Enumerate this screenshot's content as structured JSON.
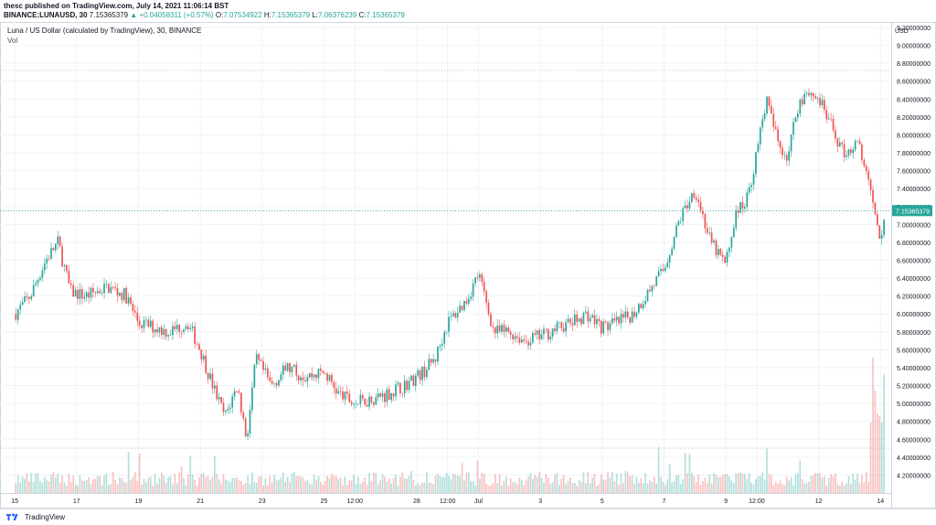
{
  "header": {
    "published_line": "thesc published on TradingView.com, July 14, 2021 11:06:14 BST",
    "symbol": "BINANCE:LUNAUSD, 30",
    "last_price": "7.15365379",
    "change": "▲ +0.04058311 (+0.57%)",
    "o_label": "O:",
    "o_value": "7.07534922",
    "h_label": "H:",
    "h_value": "7.15365379",
    "l_label": "L:",
    "l_value": "7.06376239",
    "c_label": "C:",
    "c_value": "7.15365379"
  },
  "legend": {
    "title": "Luna / US Dollar (calculated by TradingView), 30, BINANCE",
    "vol": "Vol"
  },
  "footer": {
    "brand": "TradingView"
  },
  "colors": {
    "up": "#26a69a",
    "down": "#ef5350",
    "price_tag": "#26a69a"
  },
  "chart_data": {
    "type": "candlestick",
    "title": "Luna / US Dollar (calculated by TradingView), 30, BINANCE",
    "ylabel": "USD",
    "ylim": [
      4.0,
      9.2
    ],
    "y_ticks": [
      9.2,
      9.0,
      8.8,
      8.6,
      8.4,
      8.2,
      8.0,
      7.8,
      7.6,
      7.4,
      7.2,
      7.0,
      6.8,
      6.6,
      6.4,
      6.2,
      6.0,
      5.8,
      5.6,
      5.4,
      5.2,
      5.0,
      4.8,
      4.6,
      4.4,
      4.2
    ],
    "y_tick_labels": [
      "9.20000000",
      "9.00000000",
      "8.80000000",
      "8.60000000",
      "8.40000000",
      "8.20000000",
      "8.00000000",
      "7.80000000",
      "7.60000000",
      "7.40000000",
      "7.20000000",
      "7.00000000",
      "6.80000000",
      "6.60000000",
      "6.40000000",
      "6.20000000",
      "6.00000000",
      "5.80000000",
      "5.60000000",
      "5.40000000",
      "5.20000000",
      "5.00000000",
      "4.80000000",
      "4.60000000",
      "4.40000000",
      "4.20000000"
    ],
    "x_ticks": [
      {
        "label": "15",
        "day": 0
      },
      {
        "label": "17",
        "day": 2
      },
      {
        "label": "19",
        "day": 4
      },
      {
        "label": "21",
        "day": 6
      },
      {
        "label": "23",
        "day": 8
      },
      {
        "label": "25",
        "day": 10
      },
      {
        "label": "12:00",
        "day": 11
      },
      {
        "label": "28",
        "day": 13
      },
      {
        "label": "12:00",
        "day": 14
      },
      {
        "label": "Jul",
        "day": 15
      },
      {
        "label": "3",
        "day": 17
      },
      {
        "label": "5",
        "day": 19
      },
      {
        "label": "7",
        "day": 21
      },
      {
        "label": "9",
        "day": 23
      },
      {
        "label": "12:00",
        "day": 24
      },
      {
        "label": "12",
        "day": 26
      },
      {
        "label": "14",
        "day": 28
      }
    ],
    "xlim_days": [
      -0.3,
      28.2
    ],
    "last_price": 7.15365379,
    "last_price_label": "7.15365379",
    "reference_lines": [
      8.72,
      4.5
    ],
    "path_anchors": [
      [
        0,
        6.0
      ],
      [
        0.5,
        6.2
      ],
      [
        1.0,
        6.6
      ],
      [
        1.4,
        6.8
      ],
      [
        1.8,
        6.25
      ],
      [
        2.3,
        6.2
      ],
      [
        3.0,
        6.3
      ],
      [
        3.6,
        6.2
      ],
      [
        4.0,
        5.9
      ],
      [
        4.5,
        5.85
      ],
      [
        5.0,
        5.8
      ],
      [
        5.6,
        5.9
      ],
      [
        6.0,
        5.6
      ],
      [
        6.4,
        5.2
      ],
      [
        6.8,
        4.85
      ],
      [
        7.2,
        5.2
      ],
      [
        7.5,
        4.6
      ],
      [
        7.8,
        5.5
      ],
      [
        8.3,
        5.2
      ],
      [
        8.8,
        5.4
      ],
      [
        9.4,
        5.3
      ],
      [
        10.0,
        5.35
      ],
      [
        10.5,
        5.1
      ],
      [
        11.0,
        5.0
      ],
      [
        11.5,
        5.05
      ],
      [
        12.0,
        5.1
      ],
      [
        12.6,
        5.2
      ],
      [
        13.2,
        5.35
      ],
      [
        13.6,
        5.5
      ],
      [
        14.0,
        5.9
      ],
      [
        14.6,
        6.15
      ],
      [
        15.0,
        6.45
      ],
      [
        15.5,
        5.8
      ],
      [
        16.0,
        5.8
      ],
      [
        16.5,
        5.7
      ],
      [
        17.0,
        5.75
      ],
      [
        17.6,
        5.85
      ],
      [
        18.0,
        5.9
      ],
      [
        18.5,
        6.0
      ],
      [
        19.0,
        5.85
      ],
      [
        19.5,
        5.9
      ],
      [
        20.0,
        6.0
      ],
      [
        20.5,
        6.25
      ],
      [
        21.0,
        6.5
      ],
      [
        21.5,
        7.05
      ],
      [
        22.0,
        7.4
      ],
      [
        22.5,
        6.8
      ],
      [
        23.0,
        6.55
      ],
      [
        23.3,
        7.1
      ],
      [
        23.7,
        7.3
      ],
      [
        24.0,
        7.8
      ],
      [
        24.3,
        8.4
      ],
      [
        24.7,
        7.9
      ],
      [
        25.0,
        7.75
      ],
      [
        25.3,
        8.3
      ],
      [
        25.6,
        8.5
      ],
      [
        26.0,
        8.4
      ],
      [
        26.4,
        8.1
      ],
      [
        26.8,
        7.8
      ],
      [
        27.3,
        7.9
      ],
      [
        27.7,
        7.3
      ],
      [
        28.0,
        6.75
      ],
      [
        28.15,
        7.15
      ]
    ],
    "candles_per_day": 14,
    "volume_spike": {
      "day": 27.9,
      "max_share": 0.34
    }
  }
}
